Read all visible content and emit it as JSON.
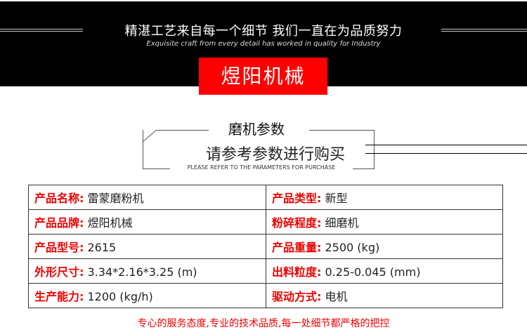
{
  "header": {
    "slogan": "精湛工艺来自每一个细节  我们一直在为品质努力",
    "slogan_en": "Exquisite craft from every detail has worked in quality for Industry",
    "brand": "煜阳机械"
  },
  "section": {
    "title": "磨机参数",
    "subtitle": "请参考参数进行购买",
    "subtitle_en": "PLEASE REFER TO THE PARAMETERS FOR PURCHASE"
  },
  "params": [
    {
      "l1": "产品名称:",
      "v1": "雷蒙磨粉机",
      "l2": "产品类型:",
      "v2": "新型"
    },
    {
      "l1": "产品品牌:",
      "v1": "煜阳机械",
      "l2": "粉碎程度:",
      "v2": "细磨机"
    },
    {
      "l1": "产品型号:",
      "v1": "2615",
      "l2": "产品重量:",
      "v2": "2500 (kg)"
    },
    {
      "l1": "外形尺寸:",
      "v1": "3.34*2.16*3.25 (m)",
      "l2": "出料粒度:",
      "v2": "0.25-0.045 (mm)"
    },
    {
      "l1": "生产能力:",
      "v1": "1200 (kg/h)",
      "l2": "驱动方式:",
      "v2": "电机"
    }
  ],
  "footer": "专心的服务态度,专业的技术品质,每一处细节都严格的把控"
}
